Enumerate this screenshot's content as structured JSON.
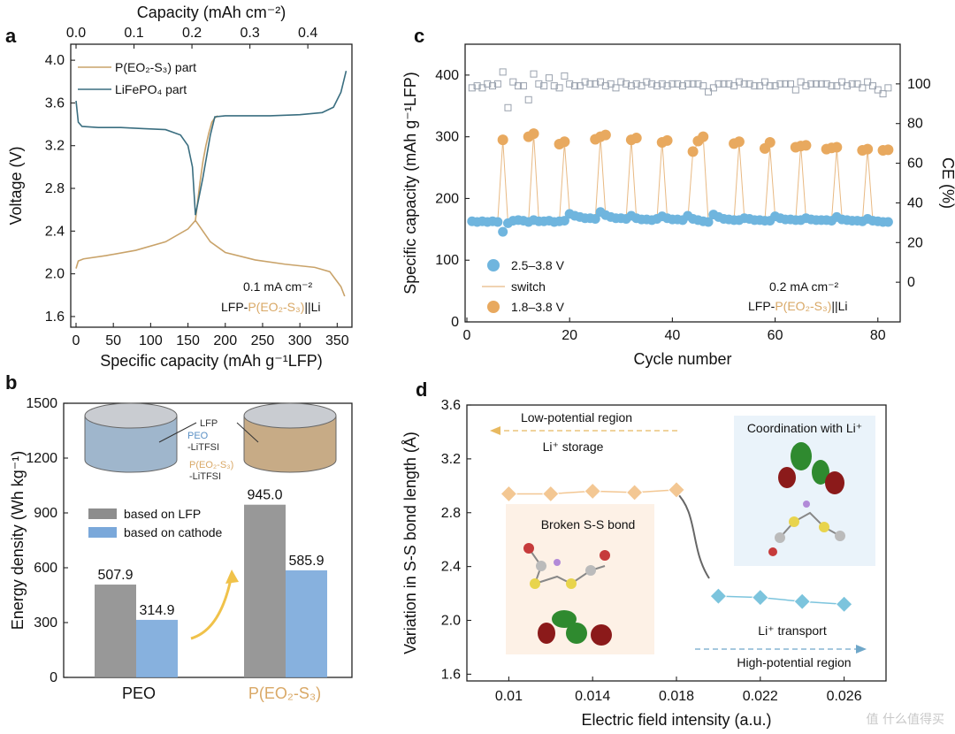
{
  "chart_data": [
    {
      "panel": "a",
      "type": "line",
      "xlabel": "Specific capacity (mAh g⁻¹LFP)",
      "x2label": "Capacity (mAh cm⁻²)",
      "ylabel": "Voltage (V)",
      "xlim": [
        0,
        365
      ],
      "ylim": [
        1.5,
        4.15
      ],
      "x2lim": [
        0,
        0.47
      ],
      "xticks": [
        "0",
        "50",
        "100",
        "150",
        "200",
        "250",
        "300",
        "350"
      ],
      "x2ticks": [
        "0.0",
        "0.1",
        "0.2",
        "0.3",
        "0.4"
      ],
      "yticks": [
        "1.6",
        "2.0",
        "2.4",
        "2.8",
        "3.2",
        "3.6",
        "4.0"
      ],
      "series": [
        {
          "name": "P(EO₂-S₃) part",
          "color": "#c9a36a",
          "x": [
            0,
            3,
            10,
            40,
            80,
            120,
            150,
            160,
            180,
            200,
            240,
            280,
            320,
            340,
            355,
            360
          ],
          "y": [
            2.05,
            2.12,
            2.14,
            2.17,
            2.22,
            2.3,
            2.42,
            2.5,
            2.3,
            2.2,
            2.13,
            2.09,
            2.06,
            2.02,
            1.88,
            1.79
          ],
          "x_up": [
            160,
            162,
            166,
            170,
            174,
            178,
            182,
            186,
            190
          ],
          "y_up": [
            2.5,
            2.62,
            2.85,
            3.05,
            3.2,
            3.32,
            3.42,
            3.46,
            3.48
          ]
        },
        {
          "name": "LiFePO₄ part",
          "color": "#3a6e80",
          "x": [
            0,
            3,
            8,
            30,
            60,
            90,
            120,
            140,
            150,
            156,
            160
          ],
          "y": [
            3.62,
            3.42,
            3.38,
            3.37,
            3.37,
            3.36,
            3.35,
            3.3,
            3.2,
            3.0,
            2.55
          ],
          "x_up": [
            160,
            170,
            180,
            186,
            200,
            260,
            300,
            330,
            345,
            355,
            362
          ],
          "y_up": [
            2.55,
            2.9,
            3.3,
            3.47,
            3.48,
            3.48,
            3.49,
            3.51,
            3.56,
            3.7,
            3.9
          ]
        }
      ],
      "annotations": [
        "0.1 mA cm⁻²",
        "LFP-",
        "P(EO₂-S₃)",
        "||Li"
      ]
    },
    {
      "panel": "b",
      "type": "bar",
      "ylabel": "Energy density (Wh kg⁻¹)",
      "ylim": [
        0,
        1500
      ],
      "yticks": [
        "0",
        "300",
        "600",
        "900",
        "1200",
        "1500"
      ],
      "categories": [
        "PEO",
        "P(EO₂-S₃)"
      ],
      "series": [
        {
          "name": "based on LFP",
          "color": "#8d8d8d",
          "values": [
            507.9,
            945.0
          ],
          "labels": [
            "507.9",
            "945.0"
          ]
        },
        {
          "name": "based on cathode",
          "color": "#7aa8da",
          "values": [
            314.9,
            585.9
          ],
          "labels": [
            "314.9",
            "585.9"
          ]
        }
      ],
      "inset_labels": [
        "LFP",
        "PEO",
        "-LiTFSI",
        "P(EO₂-S₃)",
        "-LiTFSI"
      ]
    },
    {
      "panel": "c",
      "type": "scatter",
      "xlabel": "Cycle number",
      "ylabel": "Specific capacity (mAh g⁻¹LFP)",
      "y2label": "CE (%)",
      "xlim": [
        0,
        84
      ],
      "ylim": [
        0,
        450
      ],
      "y2lim": [
        -20,
        120
      ],
      "xticks": [
        "0",
        "20",
        "40",
        "60",
        "80"
      ],
      "yticks": [
        "0",
        "100",
        "200",
        "300",
        "400"
      ],
      "y2ticks": [
        "0",
        "20",
        "40",
        "60",
        "80",
        "100"
      ],
      "series": [
        {
          "name": "2.5–3.8 V",
          "color": "#6fb5de",
          "marker": "circle",
          "x": [
            1,
            2,
            3,
            4,
            5,
            6,
            7,
            8,
            9,
            10,
            11,
            12,
            13,
            14,
            15,
            16,
            17,
            18,
            19,
            20,
            21,
            22,
            23,
            24,
            25,
            26,
            27,
            28,
            29,
            30,
            31,
            32,
            33,
            34,
            35,
            36,
            37,
            38,
            39,
            40,
            41,
            42,
            43,
            44,
            45,
            46,
            47,
            48,
            49,
            50,
            51,
            52,
            53,
            54,
            55,
            56,
            57,
            58,
            59,
            60,
            61,
            62,
            63,
            64,
            65,
            66,
            67,
            68,
            69,
            70,
            71,
            72,
            73,
            74,
            75,
            76,
            77,
            78,
            79,
            80,
            81,
            82
          ],
          "y": [
            163,
            162,
            163,
            162,
            163,
            162,
            146,
            160,
            164,
            165,
            164,
            162,
            165,
            163,
            163,
            164,
            162,
            163,
            164,
            175,
            172,
            170,
            168,
            168,
            167,
            178,
            173,
            170,
            168,
            168,
            167,
            172,
            168,
            166,
            166,
            165,
            167,
            171,
            168,
            166,
            166,
            165,
            172,
            167,
            165,
            163,
            162,
            174,
            170,
            167,
            166,
            165,
            165,
            168,
            167,
            165,
            165,
            164,
            164,
            171,
            168,
            166,
            166,
            165,
            165,
            168,
            166,
            165,
            165,
            165,
            164,
            170,
            166,
            165,
            164,
            164,
            163,
            167,
            164,
            163,
            162,
            162
          ]
        },
        {
          "name": "switch",
          "color": "#e8b983",
          "marker": "line",
          "x": [
            6,
            7,
            8,
            12,
            13,
            14,
            18,
            19,
            20,
            25,
            26,
            27,
            31,
            32,
            33,
            37,
            38,
            39,
            43,
            44,
            45,
            46,
            47,
            48,
            52,
            53,
            54,
            58,
            59,
            60,
            64,
            65,
            66,
            71,
            72,
            73,
            77,
            78,
            79
          ],
          "y": [
            163,
            295,
            160,
            163,
            305,
            165,
            163,
            290,
            175,
            167,
            300,
            173,
            167,
            296,
            168,
            165,
            294,
            168,
            165,
            276,
            290,
            300,
            162,
            174,
            165,
            291,
            170,
            164,
            282,
            171,
            165,
            286,
            168,
            165,
            281,
            170,
            163,
            280,
            165
          ]
        },
        {
          "name": "1.8–3.8 V",
          "color": "#e8a95f",
          "marker": "circle",
          "x": [
            7,
            12,
            13,
            18,
            19,
            25,
            26,
            27,
            32,
            33,
            38,
            39,
            44,
            45,
            46,
            52,
            53,
            58,
            59,
            64,
            65,
            66,
            70,
            71,
            72,
            77,
            78,
            81,
            82
          ],
          "y": [
            295,
            300,
            305,
            288,
            292,
            296,
            300,
            303,
            295,
            298,
            291,
            294,
            276,
            293,
            300,
            289,
            292,
            281,
            291,
            283,
            285,
            286,
            280,
            282,
            283,
            278,
            280,
            278,
            279
          ]
        },
        {
          "name": "CE",
          "color": "#9aa2ae",
          "marker": "square",
          "x": [
            1,
            2,
            3,
            4,
            5,
            6,
            7,
            8,
            9,
            10,
            11,
            12,
            13,
            14,
            15,
            16,
            17,
            18,
            19,
            20,
            21,
            22,
            23,
            24,
            25,
            26,
            27,
            28,
            29,
            30,
            31,
            32,
            33,
            34,
            35,
            36,
            37,
            38,
            39,
            40,
            41,
            42,
            43,
            44,
            45,
            46,
            47,
            48,
            49,
            50,
            51,
            52,
            53,
            54,
            55,
            56,
            57,
            58,
            59,
            60,
            61,
            62,
            63,
            64,
            65,
            66,
            67,
            68,
            69,
            70,
            71,
            72,
            73,
            74,
            75,
            76,
            77,
            78,
            79,
            80,
            81,
            82
          ],
          "y": [
            98,
            99,
            98,
            100,
            99,
            100,
            106,
            88,
            101,
            99,
            99,
            92,
            105,
            100,
            99,
            103,
            99,
            98,
            104,
            100,
            99,
            99,
            101,
            100,
            100,
            101,
            99,
            100,
            98,
            101,
            100,
            99,
            100,
            99,
            101,
            100,
            99,
            100,
            99,
            100,
            100,
            99,
            100,
            100,
            100,
            99,
            96,
            98,
            100,
            100,
            100,
            99,
            101,
            100,
            100,
            99,
            99,
            101,
            99,
            99,
            100,
            100,
            100,
            97,
            101,
            99,
            100,
            100,
            100,
            100,
            99,
            99,
            101,
            99,
            100,
            100,
            98,
            101,
            99,
            97,
            95,
            98
          ]
        }
      ],
      "annotations": [
        "0.2 mA cm⁻²",
        "LFP-",
        "P(EO₂-S₃)",
        "||Li"
      ]
    },
    {
      "panel": "d",
      "type": "line",
      "xlabel": "Electric field intensity (a.u.)",
      "ylabel": "Variation in S-S bond length (Å)",
      "xlim": [
        0.008,
        0.028
      ],
      "ylim": [
        1.55,
        3.6
      ],
      "xticks": [
        "0.01",
        "0.014",
        "0.018",
        "0.022",
        "0.026"
      ],
      "yticks": [
        "1.6",
        "2.0",
        "2.4",
        "2.8",
        "3.2",
        "3.6"
      ],
      "series": [
        {
          "name": "Low-potential",
          "color": "#f3c793",
          "x": [
            0.01,
            0.012,
            0.014,
            0.016,
            0.018
          ],
          "y": [
            2.94,
            2.94,
            2.96,
            2.95,
            2.97
          ]
        },
        {
          "name": "High-potential",
          "color": "#7cc4dd",
          "x": [
            0.02,
            0.022,
            0.024,
            0.026
          ],
          "y": [
            2.18,
            2.17,
            2.14,
            2.12
          ]
        }
      ],
      "annotations": [
        "Low-potential region",
        "Li⁺ storage",
        "Coordination with Li⁺",
        "Broken S-S bond",
        "Li⁺ transport",
        "High-potential region"
      ]
    }
  ],
  "panel_labels": [
    "a",
    "b",
    "c",
    "d"
  ],
  "watermark": "值 什么值得买"
}
